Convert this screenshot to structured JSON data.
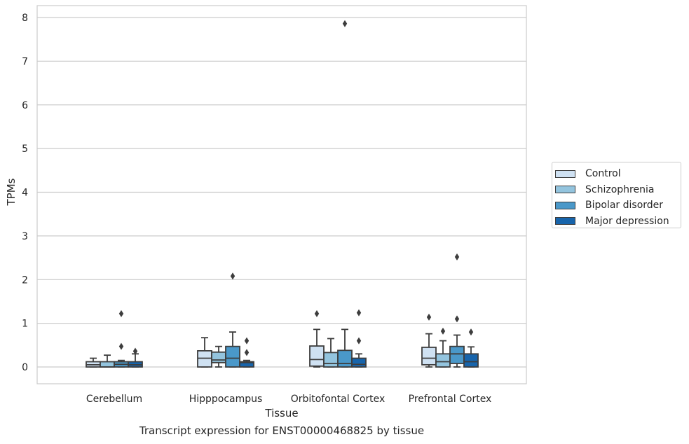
{
  "chart_data": {
    "type": "boxplot",
    "title": "",
    "caption": "Transcript expression for ENST00000468825 by tissue",
    "xlabel": "Tissue",
    "ylabel": "TPMs",
    "ylim": [
      -0.38,
      8.25
    ],
    "yticks": [
      0,
      1,
      2,
      3,
      4,
      5,
      6,
      7,
      8
    ],
    "grid": true,
    "legend_position": "right",
    "categories": [
      "Cerebellum",
      "Hipppocampus",
      "Orbitofontal Cortex",
      "Prefrontal Cortex"
    ],
    "series": [
      {
        "name": "Control",
        "color": "#cfe1f2",
        "boxes": [
          {
            "whislo": 0.0,
            "q1": 0.0,
            "med": 0.05,
            "q3": 0.12,
            "whishi": 0.2,
            "fliers": []
          },
          {
            "whislo": 0.0,
            "q1": 0.0,
            "med": 0.2,
            "q3": 0.37,
            "whishi": 0.67,
            "fliers": []
          },
          {
            "whislo": 0.0,
            "q1": 0.02,
            "med": 0.17,
            "q3": 0.48,
            "whishi": 0.86,
            "fliers": [
              1.22
            ]
          },
          {
            "whislo": 0.0,
            "q1": 0.05,
            "med": 0.2,
            "q3": 0.45,
            "whishi": 0.76,
            "fliers": [
              1.14
            ]
          }
        ]
      },
      {
        "name": "Schizophrenia",
        "color": "#93c4de",
        "boxes": [
          {
            "whislo": 0.0,
            "q1": 0.0,
            "med": 0.0,
            "q3": 0.12,
            "whishi": 0.27,
            "fliers": []
          },
          {
            "whislo": 0.0,
            "q1": 0.1,
            "med": 0.16,
            "q3": 0.34,
            "whishi": 0.47,
            "fliers": []
          },
          {
            "whislo": 0.0,
            "q1": 0.0,
            "med": 0.08,
            "q3": 0.33,
            "whishi": 0.65,
            "fliers": []
          },
          {
            "whislo": 0.0,
            "q1": 0.0,
            "med": 0.12,
            "q3": 0.3,
            "whishi": 0.6,
            "fliers": [
              0.82
            ]
          }
        ]
      },
      {
        "name": "Bipolar disorder",
        "color": "#4a98c9",
        "boxes": [
          {
            "whislo": 0.0,
            "q1": 0.0,
            "med": 0.06,
            "q3": 0.12,
            "whishi": 0.15,
            "fliers": [
              0.47,
              1.22
            ]
          },
          {
            "whislo": 0.0,
            "q1": 0.0,
            "med": 0.2,
            "q3": 0.47,
            "whishi": 0.8,
            "fliers": [
              2.08
            ]
          },
          {
            "whislo": 0.0,
            "q1": 0.0,
            "med": 0.08,
            "q3": 0.38,
            "whishi": 0.86,
            "fliers": [
              7.86
            ]
          },
          {
            "whislo": 0.0,
            "q1": 0.08,
            "med": 0.3,
            "q3": 0.47,
            "whishi": 0.73,
            "fliers": [
              1.1,
              2.52
            ]
          }
        ]
      },
      {
        "name": "Major depression",
        "color": "#1764ab",
        "boxes": [
          {
            "whislo": 0.0,
            "q1": 0.0,
            "med": 0.05,
            "q3": 0.12,
            "whishi": 0.3,
            "fliers": [
              0.36
            ]
          },
          {
            "whislo": 0.0,
            "q1": 0.0,
            "med": 0.1,
            "q3": 0.12,
            "whishi": 0.15,
            "fliers": [
              0.33,
              0.6
            ]
          },
          {
            "whislo": 0.0,
            "q1": 0.0,
            "med": 0.06,
            "q3": 0.2,
            "whishi": 0.3,
            "fliers": [
              0.6,
              1.24
            ]
          },
          {
            "whislo": 0.0,
            "q1": 0.0,
            "med": 0.12,
            "q3": 0.3,
            "whishi": 0.46,
            "fliers": [
              0.8
            ]
          }
        ]
      }
    ]
  }
}
